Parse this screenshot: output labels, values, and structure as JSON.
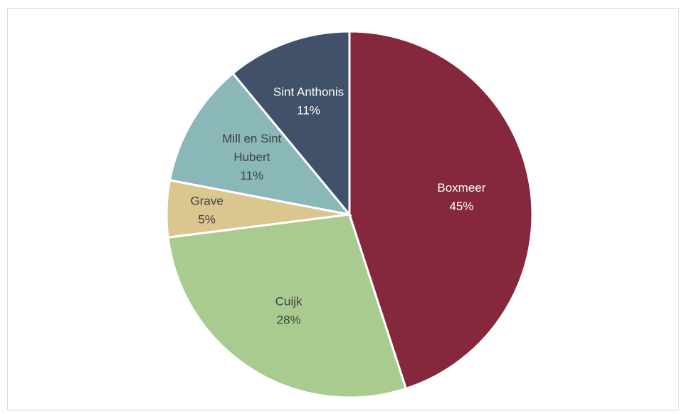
{
  "chart_data": {
    "type": "pie",
    "title": "",
    "slices": [
      {
        "label_lines": [
          "Boxmeer"
        ],
        "percent_label": "45%",
        "value": 45,
        "color": "#85283d",
        "text_color": "#ffffff"
      },
      {
        "label_lines": [
          "Cuijk"
        ],
        "percent_label": "28%",
        "value": 28,
        "color": "#aacb8f",
        "text_color": "#404040"
      },
      {
        "label_lines": [
          "Grave"
        ],
        "percent_label": "5%",
        "value": 5,
        "color": "#dcc690",
        "text_color": "#404040"
      },
      {
        "label_lines": [
          "Mill en Sint",
          "Hubert"
        ],
        "percent_label": "11%",
        "value": 11,
        "color": "#8ab8b9",
        "text_color": "#404040"
      },
      {
        "label_lines": [
          "Sint Anthonis"
        ],
        "percent_label": "11%",
        "value": 11,
        "color": "#415169",
        "text_color": "#ffffff"
      }
    ]
  }
}
